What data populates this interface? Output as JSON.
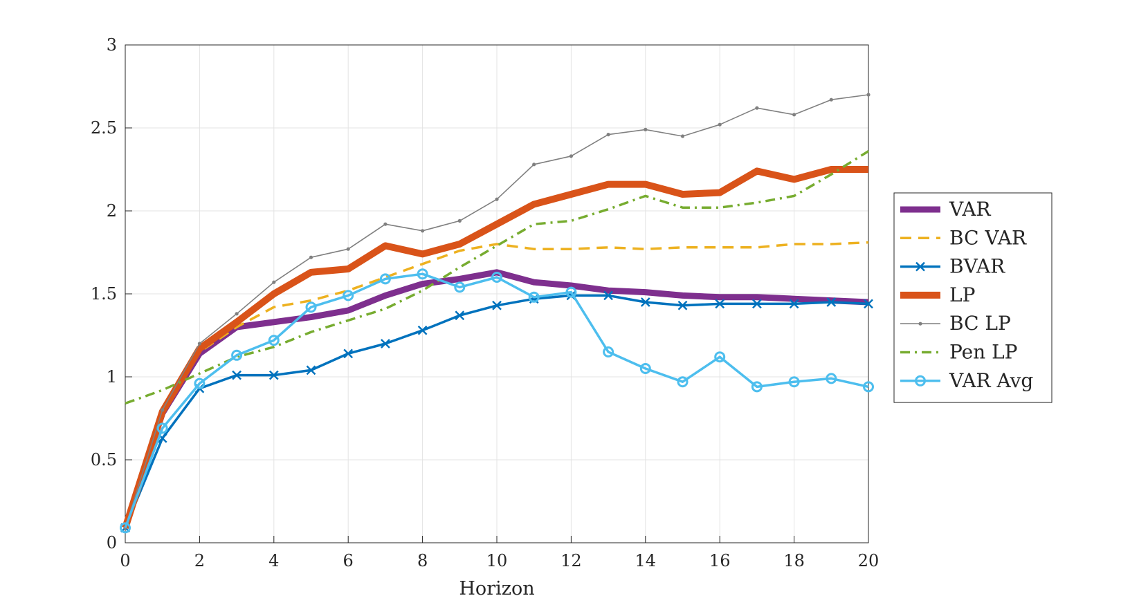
{
  "chart_data": {
    "type": "line",
    "title": "",
    "xlabel": "Horizon",
    "ylabel": "",
    "xlim": [
      0,
      20
    ],
    "ylim": [
      0,
      3
    ],
    "xticks": [
      0,
      2,
      4,
      6,
      8,
      10,
      12,
      14,
      16,
      18,
      20
    ],
    "yticks": [
      0,
      0.5,
      1,
      1.5,
      2,
      2.5,
      3
    ],
    "grid": true,
    "legend_position": "right-outside",
    "x": [
      0,
      1,
      2,
      3,
      4,
      5,
      6,
      7,
      8,
      9,
      10,
      11,
      12,
      13,
      14,
      15,
      16,
      17,
      18,
      19,
      20
    ],
    "series": [
      {
        "name": "VAR",
        "color": "#7E2F8E",
        "style": "thick-solid",
        "marker": "none",
        "values": [
          0.09,
          0.78,
          1.14,
          1.3,
          1.33,
          1.36,
          1.4,
          1.49,
          1.56,
          1.59,
          1.63,
          1.57,
          1.55,
          1.52,
          1.51,
          1.49,
          1.48,
          1.48,
          1.47,
          1.46,
          1.45
        ]
      },
      {
        "name": "BC VAR",
        "color": "#EDB120",
        "style": "dashed",
        "marker": "none",
        "values": [
          0.09,
          0.78,
          1.15,
          1.3,
          1.42,
          1.46,
          1.52,
          1.6,
          1.68,
          1.76,
          1.8,
          1.77,
          1.77,
          1.78,
          1.77,
          1.78,
          1.78,
          1.78,
          1.8,
          1.8,
          1.81
        ]
      },
      {
        "name": "BVAR",
        "color": "#0072BD",
        "style": "solid",
        "marker": "x",
        "values": [
          0.09,
          0.63,
          0.93,
          1.01,
          1.01,
          1.04,
          1.14,
          1.2,
          1.28,
          1.37,
          1.43,
          1.47,
          1.49,
          1.49,
          1.45,
          1.43,
          1.44,
          1.44,
          1.44,
          1.45,
          1.44
        ]
      },
      {
        "name": "LP",
        "color": "#D95319",
        "style": "thicker-solid",
        "marker": "none",
        "values": [
          0.09,
          0.79,
          1.17,
          1.33,
          1.5,
          1.63,
          1.65,
          1.79,
          1.74,
          1.8,
          1.92,
          2.04,
          2.1,
          2.16,
          2.16,
          2.1,
          2.11,
          2.24,
          2.19,
          2.25,
          2.25
        ]
      },
      {
        "name": "BC LP",
        "color": "#808080",
        "style": "thin-solid",
        "marker": "dot",
        "values": [
          0.09,
          0.8,
          1.2,
          1.38,
          1.57,
          1.72,
          1.77,
          1.92,
          1.88,
          1.94,
          2.07,
          2.28,
          2.33,
          2.46,
          2.49,
          2.45,
          2.52,
          2.62,
          2.58,
          2.67,
          2.7
        ]
      },
      {
        "name": "Pen LP",
        "color": "#77AC30",
        "style": "dash-dot",
        "marker": "none",
        "values": [
          0.84,
          0.92,
          1.02,
          1.12,
          1.18,
          1.27,
          1.34,
          1.41,
          1.52,
          1.66,
          1.79,
          1.92,
          1.94,
          2.01,
          2.09,
          2.02,
          2.02,
          2.05,
          2.09,
          2.22,
          2.36
        ]
      },
      {
        "name": "VAR Avg",
        "color": "#4DBEEE",
        "style": "solid",
        "marker": "circle",
        "values": [
          0.09,
          0.69,
          0.96,
          1.13,
          1.22,
          1.42,
          1.49,
          1.59,
          1.62,
          1.54,
          1.6,
          1.48,
          1.51,
          1.15,
          1.05,
          0.97,
          1.12,
          0.94,
          0.97,
          0.99,
          0.94
        ]
      }
    ]
  }
}
